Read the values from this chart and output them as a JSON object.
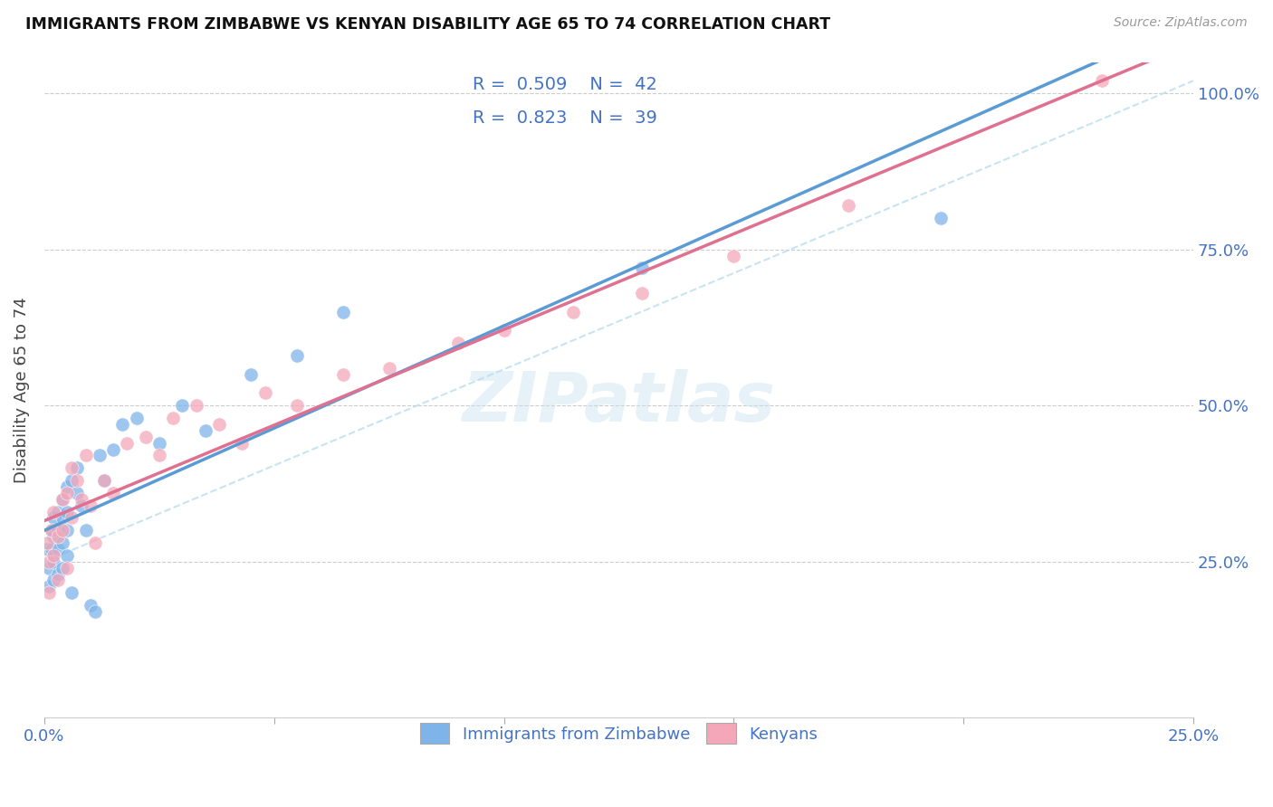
{
  "title": "IMMIGRANTS FROM ZIMBABWE VS KENYAN DISABILITY AGE 65 TO 74 CORRELATION CHART",
  "source": "Source: ZipAtlas.com",
  "ylabel": "Disability Age 65 to 74",
  "xlim": [
    0.0,
    0.25
  ],
  "ylim": [
    0.0,
    1.05
  ],
  "color_blue": "#7EB4EA",
  "color_pink": "#F4A7B9",
  "color_blue_dark": "#4472C4",
  "color_pink_dark": "#E06080",
  "color_blue_line": "#5B9BD5",
  "color_pink_line": "#E07090",
  "color_diagonal": "#BBDDEE",
  "watermark": "ZIPatlas",
  "legend_r1": "0.509",
  "legend_n1": "42",
  "legend_r2": "0.823",
  "legend_n2": "39",
  "zimbabwe_x": [
    0.0005,
    0.001,
    0.001,
    0.0015,
    0.0015,
    0.002,
    0.002,
    0.002,
    0.002,
    0.003,
    0.003,
    0.003,
    0.003,
    0.004,
    0.004,
    0.004,
    0.004,
    0.005,
    0.005,
    0.005,
    0.005,
    0.006,
    0.006,
    0.007,
    0.007,
    0.008,
    0.009,
    0.01,
    0.011,
    0.012,
    0.013,
    0.015,
    0.017,
    0.02,
    0.025,
    0.03,
    0.035,
    0.045,
    0.055,
    0.065,
    0.13,
    0.195
  ],
  "zimbabwe_y": [
    0.27,
    0.24,
    0.21,
    0.3,
    0.27,
    0.32,
    0.29,
    0.25,
    0.22,
    0.33,
    0.3,
    0.27,
    0.23,
    0.35,
    0.32,
    0.28,
    0.24,
    0.37,
    0.33,
    0.3,
    0.26,
    0.38,
    0.2,
    0.4,
    0.36,
    0.34,
    0.3,
    0.18,
    0.17,
    0.42,
    0.38,
    0.43,
    0.47,
    0.48,
    0.44,
    0.5,
    0.46,
    0.55,
    0.58,
    0.65,
    0.72,
    0.8
  ],
  "kenya_x": [
    0.0005,
    0.001,
    0.001,
    0.0015,
    0.002,
    0.002,
    0.003,
    0.003,
    0.004,
    0.004,
    0.005,
    0.005,
    0.006,
    0.006,
    0.007,
    0.008,
    0.009,
    0.01,
    0.011,
    0.013,
    0.015,
    0.018,
    0.022,
    0.025,
    0.028,
    0.033,
    0.038,
    0.043,
    0.048,
    0.055,
    0.065,
    0.075,
    0.09,
    0.1,
    0.115,
    0.13,
    0.15,
    0.175,
    0.23
  ],
  "kenya_y": [
    0.28,
    0.25,
    0.2,
    0.3,
    0.26,
    0.33,
    0.29,
    0.22,
    0.35,
    0.3,
    0.36,
    0.24,
    0.32,
    0.4,
    0.38,
    0.35,
    0.42,
    0.34,
    0.28,
    0.38,
    0.36,
    0.44,
    0.45,
    0.42,
    0.48,
    0.5,
    0.47,
    0.44,
    0.52,
    0.5,
    0.55,
    0.56,
    0.6,
    0.62,
    0.65,
    0.68,
    0.74,
    0.82,
    1.02
  ]
}
